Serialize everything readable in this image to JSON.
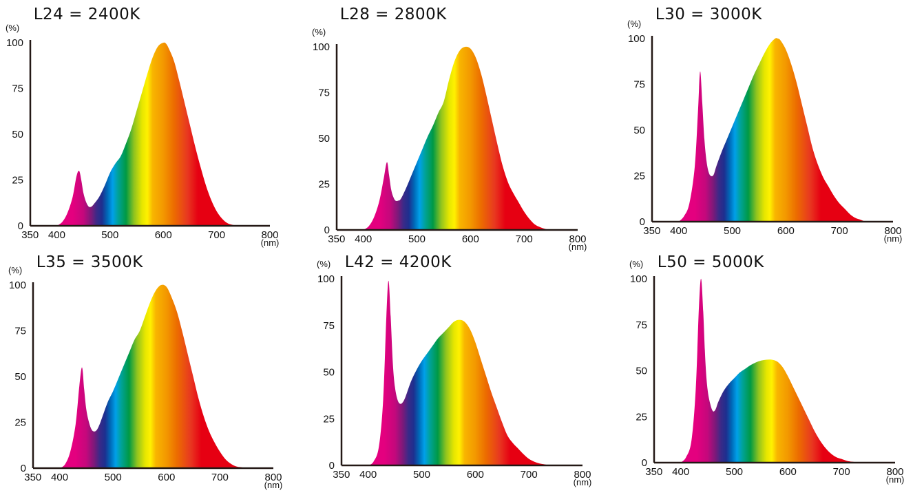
{
  "chart_data": [
    {
      "type": "area",
      "title": "L24 = 2400K",
      "ylabel": "(%)",
      "xlabel": "(nm)",
      "xlim": [
        340,
        800
      ],
      "ylim": [
        0,
        100
      ],
      "xticks": [
        350,
        400,
        500,
        600,
        700,
        800
      ],
      "yticks": [
        0,
        25,
        50,
        75,
        100
      ],
      "x": [
        400,
        410,
        420,
        430,
        437,
        442,
        446,
        450,
        455,
        460,
        465,
        470,
        480,
        490,
        500,
        510,
        520,
        530,
        540,
        550,
        560,
        570,
        580,
        590,
        600,
        605,
        610,
        620,
        630,
        640,
        650,
        660,
        670,
        680,
        690,
        700,
        710,
        720,
        730,
        740,
        750,
        760,
        770
      ],
      "values": [
        0,
        2,
        7,
        16,
        27,
        30,
        25,
        18,
        13,
        10.5,
        10.5,
        12,
        16,
        22,
        29,
        34,
        38,
        45,
        53,
        63,
        73,
        83,
        92,
        98,
        100,
        99.5,
        97,
        90,
        79,
        67,
        55,
        43,
        32,
        22,
        14,
        8,
        4,
        1.5,
        0.5,
        0,
        0,
        0,
        0
      ]
    },
    {
      "type": "area",
      "title": "L28 = 2800K",
      "ylabel": "(%)",
      "xlabel": "(nm)",
      "xlim": [
        340,
        800
      ],
      "ylim": [
        0,
        100
      ],
      "xticks": [
        350,
        400,
        500,
        600,
        700,
        800
      ],
      "yticks": [
        0,
        25,
        50,
        75,
        100
      ],
      "x": [
        400,
        410,
        420,
        430,
        438,
        444,
        448,
        452,
        456,
        460,
        465,
        470,
        480,
        490,
        500,
        510,
        520,
        530,
        540,
        550,
        560,
        570,
        580,
        590,
        600,
        610,
        620,
        630,
        640,
        650,
        660,
        670,
        680,
        690,
        700,
        710,
        720,
        730,
        740,
        750,
        760,
        770
      ],
      "values": [
        0,
        2,
        7,
        16,
        28,
        37,
        30,
        22,
        18,
        16,
        16,
        17,
        23,
        30,
        37,
        44,
        51,
        57,
        64,
        70,
        82,
        92,
        98,
        100,
        99,
        94,
        85,
        73,
        60,
        47,
        35,
        26,
        20,
        15,
        10,
        6,
        3,
        1.5,
        0.5,
        0,
        0,
        0
      ]
    },
    {
      "type": "area",
      "title": "L30 = 3000K",
      "ylabel": "(%)",
      "xlabel": "(nm)",
      "xlim": [
        340,
        800
      ],
      "ylim": [
        0,
        100
      ],
      "xticks": [
        350,
        400,
        500,
        600,
        700,
        800
      ],
      "yticks": [
        0,
        25,
        50,
        75,
        100
      ],
      "x": [
        400,
        410,
        420,
        430,
        436,
        440,
        444,
        448,
        452,
        456,
        460,
        465,
        470,
        480,
        490,
        500,
        510,
        520,
        530,
        540,
        550,
        560,
        570,
        580,
        585,
        590,
        600,
        610,
        620,
        630,
        640,
        650,
        660,
        670,
        680,
        690,
        700,
        710,
        720,
        730,
        740,
        750,
        760
      ],
      "values": [
        0,
        3,
        10,
        30,
        60,
        82,
        65,
        45,
        33,
        27,
        25,
        25.5,
        30,
        38,
        45,
        52,
        59,
        66,
        73,
        80,
        86,
        92,
        97,
        100,
        100,
        99,
        94,
        86,
        76,
        64,
        52,
        40,
        31,
        24,
        19,
        14,
        10,
        7,
        4,
        2,
        1,
        0,
        0
      ]
    },
    {
      "type": "area",
      "title": "L35 = 3500K",
      "ylabel": "(%)",
      "xlabel": "(nm)",
      "xlim": [
        340,
        800
      ],
      "ylim": [
        0,
        100
      ],
      "xticks": [
        350,
        400,
        500,
        600,
        700,
        800
      ],
      "yticks": [
        0,
        25,
        50,
        75,
        100
      ],
      "x": [
        400,
        410,
        420,
        430,
        437,
        442,
        446,
        450,
        455,
        460,
        465,
        470,
        475,
        480,
        490,
        500,
        510,
        520,
        530,
        540,
        550,
        560,
        570,
        580,
        590,
        600,
        610,
        620,
        630,
        640,
        650,
        660,
        670,
        680,
        690,
        700,
        710,
        720,
        730,
        740,
        750,
        760,
        770
      ],
      "values": [
        0,
        2,
        9,
        24,
        45,
        55,
        43,
        32,
        25,
        21,
        20,
        21,
        24,
        28,
        36,
        42,
        49,
        56,
        63,
        70,
        75,
        83,
        91,
        97,
        100,
        99,
        93,
        85,
        74,
        62,
        50,
        38,
        28,
        20,
        14,
        9,
        5,
        2.5,
        1,
        0.5,
        0,
        0,
        0
      ]
    },
    {
      "type": "area",
      "title": "L42 = 4200K",
      "ylabel": "(%)",
      "xlabel": "(nm)",
      "xlim": [
        340,
        800
      ],
      "ylim": [
        0,
        100
      ],
      "xticks": [
        350,
        400,
        500,
        600,
        700,
        800
      ],
      "yticks": [
        0,
        25,
        50,
        75,
        100
      ],
      "x": [
        400,
        410,
        420,
        428,
        434,
        438,
        442,
        446,
        450,
        455,
        460,
        465,
        470,
        480,
        490,
        500,
        510,
        520,
        530,
        540,
        550,
        560,
        570,
        580,
        590,
        600,
        610,
        620,
        630,
        640,
        650,
        660,
        670,
        680,
        690,
        700,
        710,
        720,
        730,
        740,
        750,
        760
      ],
      "values": [
        0,
        2,
        10,
        35,
        80,
        99,
        80,
        55,
        42,
        35,
        33,
        34,
        37,
        45,
        51,
        56,
        60,
        64,
        68,
        71,
        74,
        77,
        78,
        77,
        73,
        66,
        57,
        48,
        39,
        31,
        23,
        16,
        12,
        9,
        6,
        3.5,
        2,
        1,
        0.5,
        0,
        0,
        0
      ]
    },
    {
      "type": "area",
      "title": "L50 = 5000K",
      "ylabel": "(%)",
      "xlabel": "(nm)",
      "xlim": [
        340,
        800
      ],
      "ylim": [
        0,
        100
      ],
      "xticks": [
        350,
        400,
        500,
        600,
        700,
        800
      ],
      "yticks": [
        0,
        25,
        50,
        75,
        100
      ],
      "x": [
        400,
        410,
        420,
        428,
        434,
        438,
        442,
        446,
        450,
        455,
        460,
        465,
        470,
        480,
        490,
        500,
        510,
        520,
        530,
        540,
        550,
        560,
        570,
        580,
        590,
        600,
        610,
        620,
        630,
        640,
        650,
        660,
        670,
        680,
        690,
        700,
        710,
        720,
        730,
        740,
        750,
        760
      ],
      "values": [
        0,
        3,
        12,
        40,
        85,
        100,
        82,
        55,
        40,
        32,
        28,
        29,
        33,
        39,
        43,
        46,
        49,
        51,
        53,
        54.5,
        55.5,
        56,
        56,
        55,
        52,
        47,
        41,
        35,
        29,
        23,
        17,
        12,
        8,
        5,
        3,
        2,
        1,
        0.5,
        0.2,
        0,
        0,
        0
      ]
    }
  ]
}
